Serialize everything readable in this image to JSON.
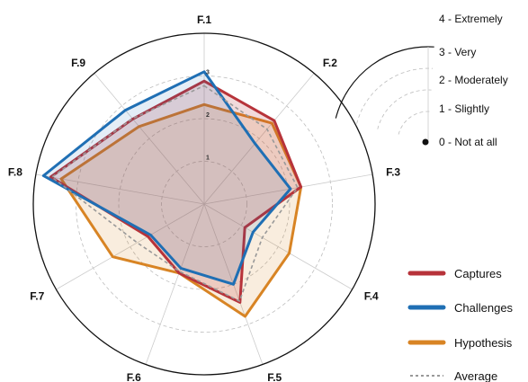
{
  "chart_data": {
    "type": "radar",
    "axes": [
      "F.1",
      "F.2",
      "F.3",
      "F.4",
      "F.5",
      "F.6",
      "F.7",
      "F.8",
      "F.9"
    ],
    "rlim": [
      0,
      4
    ],
    "radial_ticks": [
      "1",
      "2",
      "3"
    ],
    "scale_legend": [
      "4 - Extremely",
      "3 - Very",
      "2 - Moderately",
      "1 - Slightly",
      "0 - Not at all"
    ],
    "series": [
      {
        "name": "Captures",
        "values": [
          2.88,
          2.55,
          2.3,
          1.1,
          2.45,
          1.72,
          1.52,
          3.65,
          2.6
        ],
        "color": "#b7333a",
        "style": "solid"
      },
      {
        "name": "Challenges",
        "values": [
          3.1,
          1.85,
          2.05,
          1.32,
          2.0,
          1.6,
          1.45,
          3.82,
          2.87
        ],
        "color": "#1f6fb4",
        "style": "solid"
      },
      {
        "name": "Hypothesis",
        "values": [
          2.33,
          2.47,
          2.3,
          2.3,
          2.8,
          1.72,
          2.47,
          3.4,
          2.37
        ],
        "color": "#d88424",
        "style": "solid"
      },
      {
        "name": "Average",
        "values": [
          2.77,
          2.29,
          2.22,
          1.57,
          2.42,
          1.68,
          1.81,
          3.62,
          2.61
        ],
        "color": "#999999",
        "style": "dashed"
      }
    ],
    "grid": true,
    "legend_position": "right"
  }
}
